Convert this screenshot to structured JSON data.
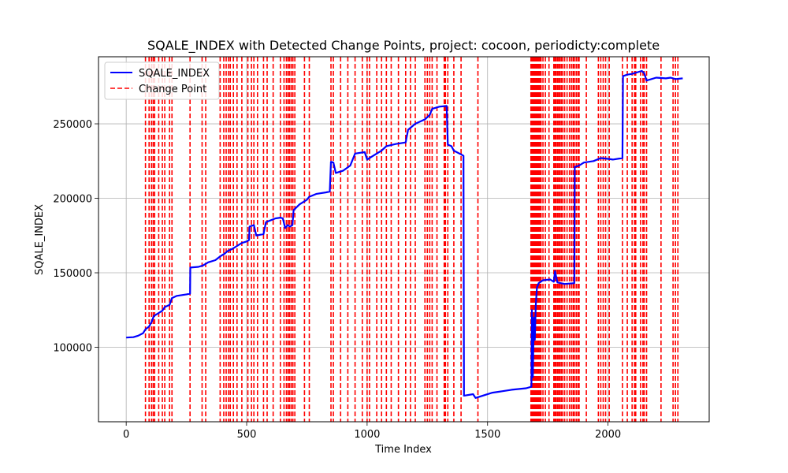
{
  "chart_data": {
    "type": "line",
    "title": "SQALE_INDEX with Detected Change Points, project: cocoon, periodicty:complete",
    "xlabel": "Time Index",
    "ylabel": "SQALE_INDEX",
    "xlim": [
      -115,
      2420
    ],
    "ylim": [
      50000,
      295000
    ],
    "x_ticks": [
      0,
      500,
      1000,
      1500,
      2000
    ],
    "x_tick_labels": [
      "0",
      "500",
      "1000",
      "1500",
      "2000"
    ],
    "y_ticks": [
      100000,
      150000,
      200000,
      250000
    ],
    "y_tick_labels": [
      "100000",
      "150000",
      "200000",
      "250000"
    ],
    "grid": true,
    "legend_position": "upper-left",
    "colors": {
      "series": "#0000ff",
      "change_point": "#ff0000"
    },
    "series": [
      {
        "name": "SQALE_INDEX",
        "style": "solid",
        "points": [
          [
            0,
            106500
          ],
          [
            30,
            106800
          ],
          [
            50,
            107800
          ],
          [
            70,
            109500
          ],
          [
            80,
            112000
          ],
          [
            95,
            114000
          ],
          [
            105,
            117000
          ],
          [
            115,
            121000
          ],
          [
            135,
            123000
          ],
          [
            150,
            124500
          ],
          [
            160,
            127000
          ],
          [
            180,
            128500
          ],
          [
            190,
            133000
          ],
          [
            210,
            134500
          ],
          [
            250,
            135500
          ],
          [
            265,
            136000
          ],
          [
            266,
            153500
          ],
          [
            300,
            154000
          ],
          [
            320,
            155000
          ],
          [
            340,
            157000
          ],
          [
            370,
            158500
          ],
          [
            390,
            161000
          ],
          [
            410,
            163000
          ],
          [
            420,
            164500
          ],
          [
            440,
            166000
          ],
          [
            460,
            168000
          ],
          [
            480,
            170000
          ],
          [
            500,
            171000
          ],
          [
            510,
            172000
          ],
          [
            512,
            181000
          ],
          [
            530,
            182000
          ],
          [
            540,
            175000
          ],
          [
            570,
            176000
          ],
          [
            580,
            184000
          ],
          [
            620,
            186500
          ],
          [
            640,
            187000
          ],
          [
            650,
            186500
          ],
          [
            660,
            180000
          ],
          [
            670,
            182000
          ],
          [
            680,
            181000
          ],
          [
            690,
            182000
          ],
          [
            695,
            192000
          ],
          [
            720,
            196000
          ],
          [
            750,
            199000
          ],
          [
            760,
            201000
          ],
          [
            790,
            203000
          ],
          [
            830,
            204000
          ],
          [
            845,
            204500
          ],
          [
            850,
            224500
          ],
          [
            860,
            224000
          ],
          [
            870,
            217000
          ],
          [
            900,
            218500
          ],
          [
            930,
            222000
          ],
          [
            950,
            230000
          ],
          [
            990,
            231000
          ],
          [
            1000,
            226000
          ],
          [
            1020,
            228000
          ],
          [
            1060,
            232000
          ],
          [
            1080,
            235000
          ],
          [
            1120,
            236500
          ],
          [
            1160,
            237500
          ],
          [
            1170,
            246000
          ],
          [
            1200,
            250000
          ],
          [
            1240,
            253000
          ],
          [
            1260,
            256000
          ],
          [
            1270,
            260000
          ],
          [
            1300,
            261500
          ],
          [
            1330,
            262000
          ],
          [
            1335,
            236000
          ],
          [
            1350,
            235000
          ],
          [
            1360,
            232000
          ],
          [
            1390,
            229500
          ],
          [
            1400,
            228500
          ],
          [
            1402,
            67500
          ],
          [
            1440,
            68500
          ],
          [
            1450,
            66000
          ],
          [
            1480,
            67500
          ],
          [
            1520,
            69500
          ],
          [
            1560,
            70500
          ],
          [
            1600,
            71500
          ],
          [
            1660,
            72500
          ],
          [
            1682,
            73500
          ],
          [
            1684,
            125000
          ],
          [
            1688,
            80000
          ],
          [
            1692,
            120000
          ],
          [
            1696,
            105000
          ],
          [
            1700,
            128000
          ],
          [
            1705,
            140000
          ],
          [
            1712,
            143000
          ],
          [
            1730,
            145000
          ],
          [
            1760,
            145500
          ],
          [
            1775,
            144000
          ],
          [
            1780,
            151000
          ],
          [
            1790,
            143500
          ],
          [
            1820,
            142500
          ],
          [
            1860,
            143000
          ],
          [
            1862,
            221000
          ],
          [
            1880,
            222000
          ],
          [
            1900,
            224000
          ],
          [
            1940,
            225000
          ],
          [
            1970,
            227000
          ],
          [
            2000,
            226500
          ],
          [
            2020,
            226000
          ],
          [
            2060,
            227000
          ],
          [
            2062,
            282000
          ],
          [
            2080,
            283000
          ],
          [
            2100,
            283500
          ],
          [
            2140,
            285500
          ],
          [
            2150,
            284000
          ],
          [
            2160,
            279000
          ],
          [
            2200,
            281000
          ],
          [
            2240,
            280500
          ],
          [
            2260,
            281000
          ],
          [
            2280,
            280000
          ],
          [
            2310,
            280500
          ]
        ]
      },
      {
        "name": "Change Point",
        "style": "dashed",
        "x": [
          80,
          95,
          105,
          112,
          118,
          135,
          150,
          160,
          180,
          190,
          265,
          315,
          330,
          390,
          405,
          415,
          425,
          432,
          445,
          460,
          480,
          505,
          520,
          530,
          545,
          570,
          585,
          610,
          640,
          655,
          665,
          672,
          678,
          685,
          692,
          700,
          740,
          760,
          850,
          860,
          890,
          920,
          950,
          980,
          1000,
          1010,
          1040,
          1060,
          1080,
          1100,
          1130,
          1160,
          1180,
          1200,
          1240,
          1250,
          1260,
          1270,
          1290,
          1320,
          1325,
          1335,
          1360,
          1390,
          1460,
          1680,
          1683,
          1686,
          1690,
          1694,
          1698,
          1702,
          1706,
          1710,
          1714,
          1718,
          1722,
          1730,
          1740,
          1755,
          1775,
          1780,
          1784,
          1790,
          1795,
          1800,
          1806,
          1812,
          1820,
          1830,
          1840,
          1848,
          1855,
          1860,
          1868,
          1875,
          1880,
          1910,
          1960,
          1970,
          1980,
          1990,
          2005,
          2060,
          2080,
          2100,
          2110,
          2115,
          2135,
          2145,
          2150,
          2160,
          2220,
          2270,
          2280,
          2290
        ]
      }
    ]
  }
}
